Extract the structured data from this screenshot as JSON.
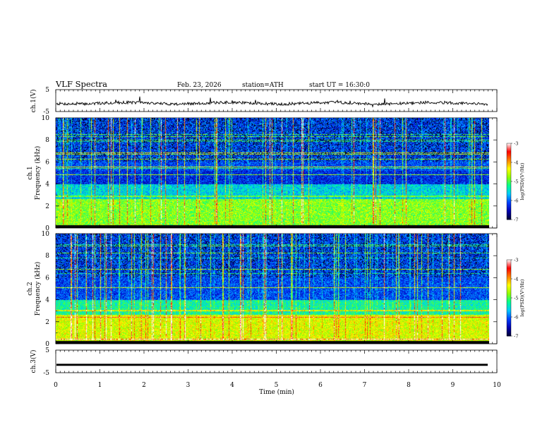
{
  "header": {
    "title": "VLF  Spectra",
    "date": "Feb. 23, 2026",
    "station": "station=ATH",
    "start": "start  UT  =   16:30:0"
  },
  "chart_data": [
    {
      "type": "line",
      "panel": "ch1-waveform",
      "ylabel": "ch.1(V)",
      "ylim": [
        -5,
        5
      ],
      "yticks": [
        "5",
        "-5"
      ],
      "baseline_v": -1.2,
      "color": "#000000"
    },
    {
      "type": "heatmap",
      "panel": "ch1-spectrogram",
      "ylabel_channel": "ch.1",
      "ylabel": "Frequency  (kHz)",
      "ylim": [
        0,
        10
      ],
      "yticks": [
        "0",
        "2",
        "4",
        "6",
        "8",
        "10"
      ],
      "colorbar": {
        "label": "log(PSD)(V²/Hz)",
        "range": [
          -7,
          -3
        ],
        "ticks": [
          "-3",
          "-4",
          "-5",
          "-6",
          "-7"
        ],
        "colors": [
          "#000033",
          "#0000b0",
          "#0040ff",
          "#00c8ff",
          "#00ff90",
          "#90ff00",
          "#ffff00",
          "#ff8000",
          "#ff0000",
          "#ffffff"
        ]
      },
      "seed": 11
    },
    {
      "type": "heatmap",
      "panel": "ch2-spectrogram",
      "ylabel_channel": "ch.2",
      "ylabel": "Frequency  (kHz)",
      "ylim": [
        0,
        10
      ],
      "yticks": [
        "0",
        "2",
        "4",
        "6",
        "8",
        "10"
      ],
      "colorbar": {
        "label": "log(PSD)(V²/Hz)",
        "range": [
          -7,
          -3
        ],
        "ticks": [
          "-3",
          "-4",
          "-5",
          "-6",
          "-7"
        ],
        "colors": [
          "#000033",
          "#0000b0",
          "#0040ff",
          "#00c8ff",
          "#00ff90",
          "#90ff00",
          "#ffff00",
          "#ff8000",
          "#ff0000",
          "#ffffff"
        ]
      },
      "seed": 29
    },
    {
      "type": "line",
      "panel": "ch3-waveform",
      "ylabel": "ch.3(V)",
      "ylim": [
        -5,
        5
      ],
      "yticks": [
        "5",
        "-5"
      ],
      "baseline_v": -1.5,
      "color": "#000000"
    }
  ],
  "xaxis": {
    "label": "Time  (min)",
    "xlim": [
      0,
      10
    ],
    "data_end": 9.8,
    "ticks": [
      "0",
      "1",
      "2",
      "3",
      "4",
      "5",
      "6",
      "7",
      "8",
      "9",
      "10"
    ]
  }
}
